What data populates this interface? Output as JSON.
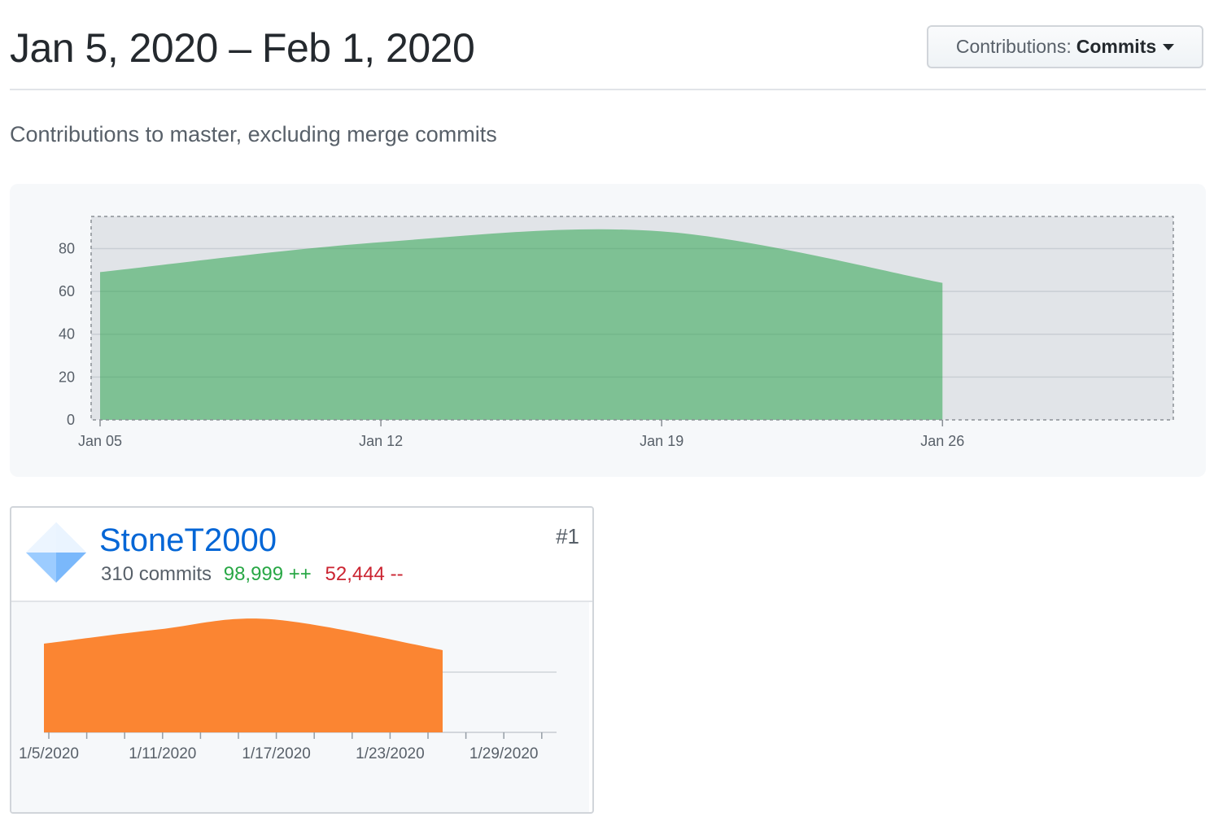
{
  "header": {
    "title": "Jan 5, 2020 – Feb 1, 2020",
    "dropdown_label": "Contributions:",
    "dropdown_value": "Commits",
    "dropdown_icon": "caret-down-icon"
  },
  "subtitle": "Contributions to master, excluding merge commits",
  "chart_data": [
    {
      "type": "area",
      "x": [
        "Jan 05",
        "Jan 12",
        "Jan 19",
        "Jan 26"
      ],
      "values": [
        69,
        83,
        88,
        64
      ],
      "xlim_days": [
        0,
        27
      ],
      "ylim": [
        0,
        95
      ],
      "yticks": [
        0,
        20,
        40,
        60,
        80
      ],
      "xtick_labels": [
        "Jan 05",
        "Jan 12",
        "Jan 19",
        "Jan 26"
      ],
      "fill_color": "#2ea44f",
      "grid": true,
      "brush_selection": "full range"
    },
    {
      "type": "area",
      "x": [
        "1/5/2020",
        "1/11/2020",
        "1/17/2020",
        "1/23/2020"
      ],
      "values": [
        69,
        80,
        88,
        64
      ],
      "xtick_labels": [
        "1/5/2020",
        "1/11/2020",
        "1/17/2020",
        "1/23/2020",
        "1/29/2020"
      ],
      "fill_color": "#fb8532",
      "grid": true
    }
  ],
  "contributor": {
    "username": "StoneT2000",
    "avatar_icon": "identicon-avatar",
    "commits": "310 commits",
    "additions": "98,999 ++",
    "deletions": "52,444 --",
    "rank": "#1"
  },
  "colors": {
    "link": "#0366d6",
    "additions": "#28a745",
    "deletions": "#cb2431",
    "main_area": "#2ea44f",
    "user_area": "#fb8532"
  }
}
